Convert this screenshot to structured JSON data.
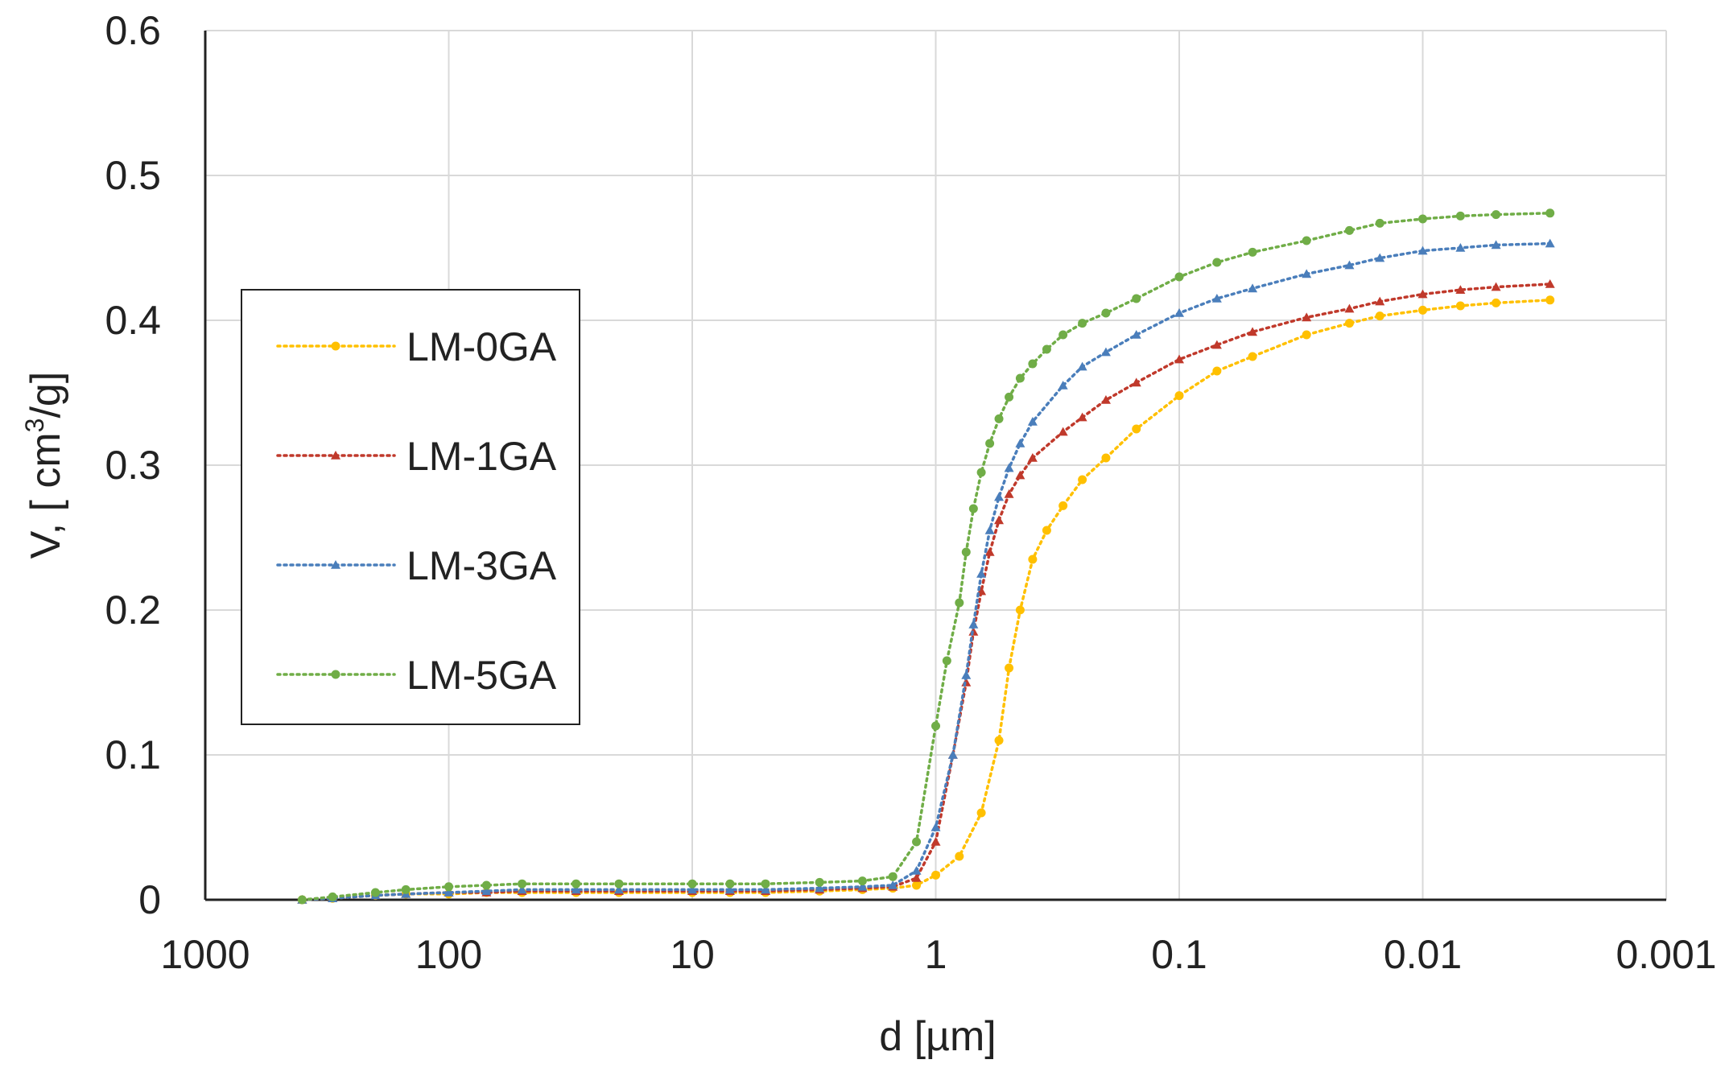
{
  "chart_data": {
    "type": "line",
    "title": "",
    "xlabel": "d [µm]",
    "ylabel_prefix": "V, [ cm",
    "ylabel_sup": "3",
    "ylabel_suffix": "/g]",
    "x_scale": "log",
    "x_reversed": true,
    "xlim": [
      1000,
      0.001
    ],
    "ylim": [
      0,
      0.6
    ],
    "grid": true,
    "legend_position": "left-center",
    "x_tick_values": [
      1000,
      100,
      10,
      1,
      0.1,
      0.01,
      0.001
    ],
    "x_tick_labels": [
      "1000",
      "100",
      "10",
      "1",
      "0.1",
      "0.01",
      "0.001"
    ],
    "y_tick_values": [
      0,
      0.1,
      0.2,
      0.3,
      0.4,
      0.5,
      0.6
    ],
    "y_tick_labels": [
      "0",
      "0.1",
      "0.2",
      "0.3",
      "0.4",
      "0.5",
      "0.6"
    ],
    "series": [
      {
        "name": "LM-0GA",
        "color": "#FFC000",
        "marker": "circle",
        "x": [
          400,
          300,
          200,
          150,
          100,
          70,
          50,
          30,
          20,
          10,
          7,
          5,
          3,
          2,
          1.5,
          1.2,
          1.0,
          0.8,
          0.65,
          0.55,
          0.5,
          0.45,
          0.4,
          0.35,
          0.3,
          0.25,
          0.2,
          0.15,
          0.1,
          0.07,
          0.05,
          0.03,
          0.02,
          0.015,
          0.01,
          0.007,
          0.005,
          0.003
        ],
        "y": [
          0.0,
          0.001,
          0.003,
          0.004,
          0.004,
          0.005,
          0.005,
          0.005,
          0.005,
          0.005,
          0.005,
          0.005,
          0.006,
          0.007,
          0.008,
          0.01,
          0.017,
          0.03,
          0.06,
          0.11,
          0.16,
          0.2,
          0.235,
          0.255,
          0.272,
          0.29,
          0.305,
          0.325,
          0.348,
          0.365,
          0.375,
          0.39,
          0.398,
          0.403,
          0.407,
          0.41,
          0.412,
          0.414
        ]
      },
      {
        "name": "LM-1GA",
        "color": "#C0392B",
        "marker": "triangle",
        "x": [
          400,
          300,
          200,
          150,
          100,
          70,
          50,
          30,
          20,
          10,
          7,
          5,
          3,
          2,
          1.5,
          1.2,
          1.0,
          0.85,
          0.75,
          0.7,
          0.65,
          0.6,
          0.55,
          0.5,
          0.45,
          0.4,
          0.3,
          0.25,
          0.2,
          0.15,
          0.1,
          0.07,
          0.05,
          0.03,
          0.02,
          0.015,
          0.01,
          0.007,
          0.005,
          0.003
        ],
        "y": [
          0.0,
          0.001,
          0.003,
          0.004,
          0.005,
          0.005,
          0.006,
          0.006,
          0.006,
          0.006,
          0.006,
          0.006,
          0.007,
          0.008,
          0.009,
          0.015,
          0.04,
          0.1,
          0.15,
          0.185,
          0.213,
          0.24,
          0.262,
          0.28,
          0.293,
          0.305,
          0.323,
          0.333,
          0.345,
          0.357,
          0.373,
          0.383,
          0.392,
          0.402,
          0.408,
          0.413,
          0.418,
          0.421,
          0.423,
          0.425
        ]
      },
      {
        "name": "LM-3GA",
        "color": "#4A7EBB",
        "marker": "triangle",
        "x": [
          400,
          300,
          200,
          150,
          100,
          70,
          50,
          30,
          20,
          10,
          7,
          5,
          3,
          2,
          1.5,
          1.2,
          1.0,
          0.85,
          0.75,
          0.7,
          0.65,
          0.6,
          0.55,
          0.5,
          0.45,
          0.4,
          0.3,
          0.25,
          0.2,
          0.15,
          0.1,
          0.07,
          0.05,
          0.03,
          0.02,
          0.015,
          0.01,
          0.007,
          0.005,
          0.003
        ],
        "y": [
          0.0,
          0.001,
          0.003,
          0.004,
          0.005,
          0.006,
          0.007,
          0.007,
          0.007,
          0.007,
          0.007,
          0.007,
          0.008,
          0.009,
          0.01,
          0.02,
          0.05,
          0.1,
          0.155,
          0.19,
          0.225,
          0.255,
          0.278,
          0.298,
          0.315,
          0.33,
          0.355,
          0.368,
          0.378,
          0.39,
          0.405,
          0.415,
          0.422,
          0.432,
          0.438,
          0.443,
          0.448,
          0.45,
          0.452,
          0.453
        ]
      },
      {
        "name": "LM-5GA",
        "color": "#70AD47",
        "marker": "circle",
        "x": [
          400,
          300,
          200,
          150,
          100,
          70,
          50,
          30,
          20,
          10,
          7,
          5,
          3,
          2,
          1.5,
          1.2,
          1.0,
          0.9,
          0.8,
          0.75,
          0.7,
          0.65,
          0.6,
          0.55,
          0.5,
          0.45,
          0.4,
          0.35,
          0.3,
          0.25,
          0.2,
          0.15,
          0.1,
          0.07,
          0.05,
          0.03,
          0.02,
          0.015,
          0.01,
          0.007,
          0.005,
          0.003
        ],
        "y": [
          0.0,
          0.002,
          0.005,
          0.007,
          0.009,
          0.01,
          0.011,
          0.011,
          0.011,
          0.011,
          0.011,
          0.011,
          0.012,
          0.013,
          0.016,
          0.04,
          0.12,
          0.165,
          0.205,
          0.24,
          0.27,
          0.295,
          0.315,
          0.332,
          0.347,
          0.36,
          0.37,
          0.38,
          0.39,
          0.398,
          0.405,
          0.415,
          0.43,
          0.44,
          0.447,
          0.455,
          0.462,
          0.467,
          0.47,
          0.472,
          0.473,
          0.474
        ]
      }
    ]
  }
}
